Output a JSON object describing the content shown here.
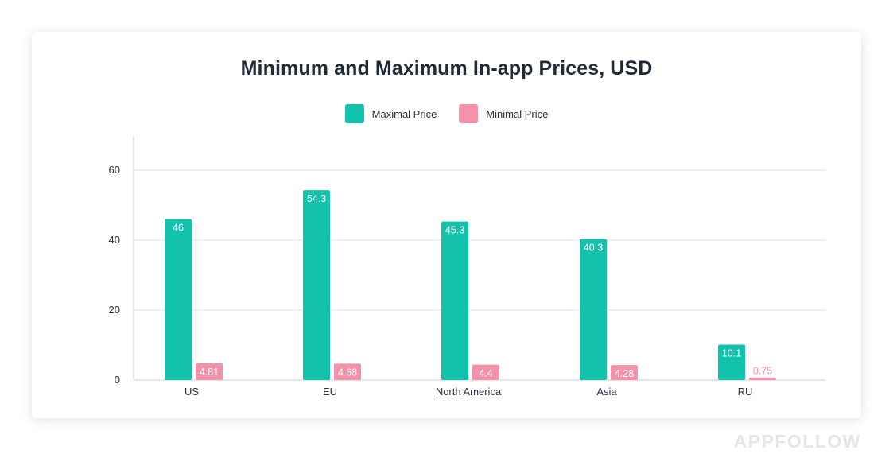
{
  "watermark": "APPFOLLOW",
  "colors": {
    "max": "#13c2ad",
    "min": "#f392a8",
    "grid": "#dde1e6",
    "axis": "#c9ced4",
    "text": "#2c3440",
    "min_label": "#ffffff",
    "min_label_small": "#f392a8"
  },
  "chart_data": {
    "type": "bar",
    "title": "Minimum and Maximum In-app Prices, USD",
    "categories": [
      "US",
      "EU",
      "North America",
      "Asia",
      "RU"
    ],
    "series": [
      {
        "name": "Maximal Price",
        "values": [
          46,
          54.3,
          45.3,
          40.3,
          10.1
        ]
      },
      {
        "name": "Minimal Price",
        "values": [
          4.81,
          4.68,
          4.4,
          4.28,
          0.75
        ]
      }
    ],
    "data_labels": [
      [
        "46",
        "54.3",
        "45.3",
        "40.3",
        "10.1"
      ],
      [
        "4.81",
        "4.68",
        "4.4",
        "4.28",
        "0.75"
      ]
    ],
    "yticks": [
      0,
      20,
      40,
      60
    ],
    "ylim": [
      0,
      70
    ],
    "grid": true,
    "legend_position": "top-center"
  }
}
